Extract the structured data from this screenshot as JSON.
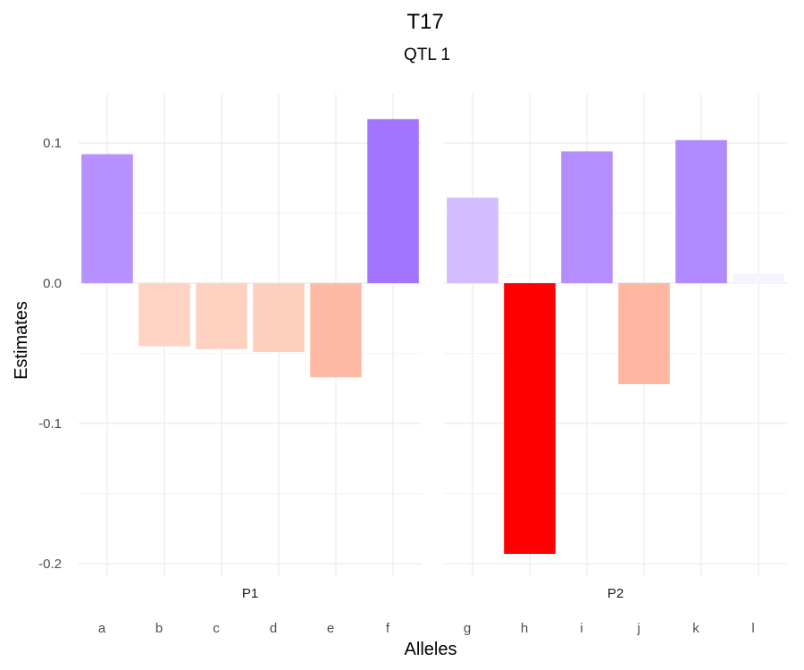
{
  "chart_data": {
    "type": "bar",
    "title": "T17",
    "subtitle": "QTL 1",
    "xlabel": "Alleles",
    "ylabel": "Estimates",
    "ylim": [
      -0.2,
      0.1
    ],
    "yticks": [
      -0.2,
      -0.1,
      0.0,
      0.1
    ],
    "ytick_labels": [
      "-0.2",
      "-0.1",
      "0.0",
      "0.1"
    ],
    "grid": true,
    "color_scale": {
      "negative_max": "#ff0000",
      "zero": "#ffffff",
      "positive_max": "#7f3fff"
    },
    "facets": [
      {
        "name": "P1",
        "categories": [
          "a",
          "b",
          "c",
          "d",
          "e",
          "f"
        ],
        "values": [
          0.092,
          -0.045,
          -0.047,
          -0.049,
          -0.067,
          0.117
        ],
        "colors": [
          "#b691ff",
          "#ffd3c3",
          "#ffd1c1",
          "#ffcfbe",
          "#ffbaa5",
          "#a374ff"
        ]
      },
      {
        "name": "P2",
        "categories": [
          "g",
          "h",
          "i",
          "j",
          "k",
          "l"
        ],
        "values": [
          0.061,
          -0.193,
          0.094,
          -0.072,
          0.102,
          0.007
        ],
        "colors": [
          "#d3bcff",
          "#ff0000",
          "#b48eff",
          "#ffb7a1",
          "#b08aff",
          "#f7f3ff"
        ]
      }
    ]
  }
}
